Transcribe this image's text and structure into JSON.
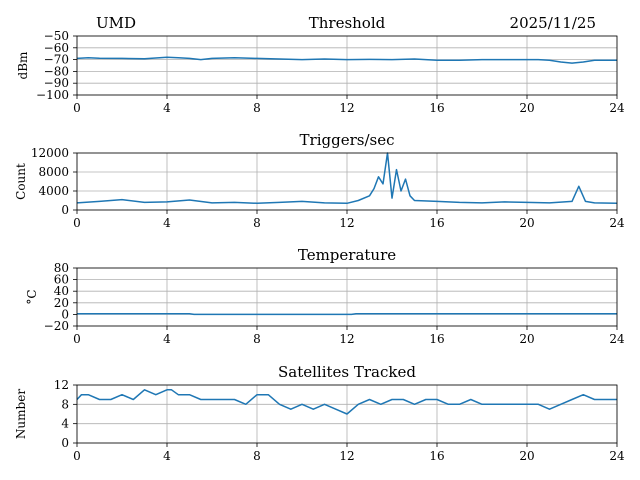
{
  "header": {
    "left": "UMD",
    "right": "2025/11/25"
  },
  "x_ticks": [
    "0",
    "4",
    "8",
    "12",
    "16",
    "20",
    "24"
  ],
  "series_color": "#1f77b4",
  "chart_data": [
    {
      "type": "line",
      "title": "Threshold",
      "ylabel": "dBm",
      "ylim": [
        -100,
        -50
      ],
      "xlim": [
        0,
        24
      ],
      "y_ticks": [
        "−50",
        "−60",
        "−70",
        "−80",
        "−90",
        "−100"
      ],
      "grid": true,
      "x": [
        0,
        0.5,
        1,
        2,
        3,
        4,
        4.5,
        5,
        5.5,
        6,
        7,
        8,
        9,
        10,
        11,
        12,
        13,
        14,
        15,
        16,
        17,
        18,
        19,
        20,
        20.5,
        21,
        21.5,
        22,
        22.5,
        23,
        24
      ],
      "values": [
        -69,
        -68.5,
        -68.8,
        -69,
        -69.2,
        -68,
        -68.5,
        -69,
        -70,
        -69,
        -68.5,
        -69,
        -69.5,
        -70,
        -69.5,
        -70,
        -69.8,
        -70,
        -69.5,
        -70.5,
        -70.5,
        -70,
        -70,
        -70,
        -70,
        -70.5,
        -72,
        -73,
        -72,
        -70.5,
        -70.5
      ]
    },
    {
      "type": "line",
      "title": "Triggers/sec",
      "ylabel": "Count",
      "ylim": [
        0,
        12000
      ],
      "xlim": [
        0,
        24
      ],
      "y_ticks": [
        "12000",
        "8000",
        "4000",
        "0"
      ],
      "grid": true,
      "x": [
        0,
        1,
        2,
        3,
        4,
        5,
        6,
        7,
        8,
        9,
        10,
        11,
        12,
        12.5,
        13,
        13.2,
        13.4,
        13.6,
        13.8,
        14,
        14.2,
        14.4,
        14.6,
        14.8,
        15,
        16,
        17,
        18,
        19,
        20,
        21,
        22,
        22.3,
        22.6,
        23,
        24
      ],
      "values": [
        1500,
        1800,
        2200,
        1600,
        1700,
        2100,
        1500,
        1600,
        1400,
        1600,
        1800,
        1500,
        1400,
        2000,
        3000,
        4500,
        7000,
        5500,
        12000,
        2500,
        8500,
        4000,
        6500,
        3000,
        2000,
        1800,
        1600,
        1500,
        1700,
        1600,
        1500,
        1800,
        5000,
        1800,
        1500,
        1400
      ]
    },
    {
      "type": "line",
      "title": "Temperature",
      "ylabel": "°C",
      "ylim": [
        -20,
        80
      ],
      "xlim": [
        0,
        24
      ],
      "y_ticks": [
        "80",
        "60",
        "40",
        "20",
        "0",
        "−20"
      ],
      "grid": true,
      "x": [
        0,
        5,
        5.2,
        12.2,
        12.4,
        24
      ],
      "values": [
        1,
        1,
        0,
        0,
        1,
        1
      ]
    },
    {
      "type": "line",
      "title": "Satellites Tracked",
      "ylabel": "Number",
      "ylim": [
        0,
        12
      ],
      "xlim": [
        0,
        24
      ],
      "y_ticks": [
        "12",
        "8",
        "4",
        "0"
      ],
      "grid": true,
      "x": [
        0,
        0.2,
        0.5,
        1,
        1.5,
        2,
        2.5,
        3,
        3.5,
        4,
        4.2,
        4.5,
        5,
        5.5,
        6,
        6.5,
        7,
        7.5,
        8,
        8.5,
        9,
        9.5,
        10,
        10.5,
        11,
        11.5,
        12,
        12.5,
        13,
        13.5,
        14,
        14.5,
        15,
        15.5,
        16,
        16.5,
        17,
        17.5,
        18,
        18.5,
        19,
        19.5,
        20,
        20.5,
        21,
        21.5,
        22,
        22.5,
        23,
        23.5,
        24
      ],
      "values": [
        9,
        10,
        10,
        9,
        9,
        10,
        9,
        11,
        10,
        11,
        11,
        10,
        10,
        9,
        9,
        9,
        9,
        8,
        10,
        10,
        8,
        7,
        8,
        7,
        8,
        7,
        6,
        8,
        9,
        8,
        9,
        9,
        8,
        9,
        9,
        8,
        8,
        9,
        8,
        8,
        8,
        8,
        8,
        8,
        7,
        8,
        9,
        10,
        9,
        9,
        9
      ]
    }
  ]
}
